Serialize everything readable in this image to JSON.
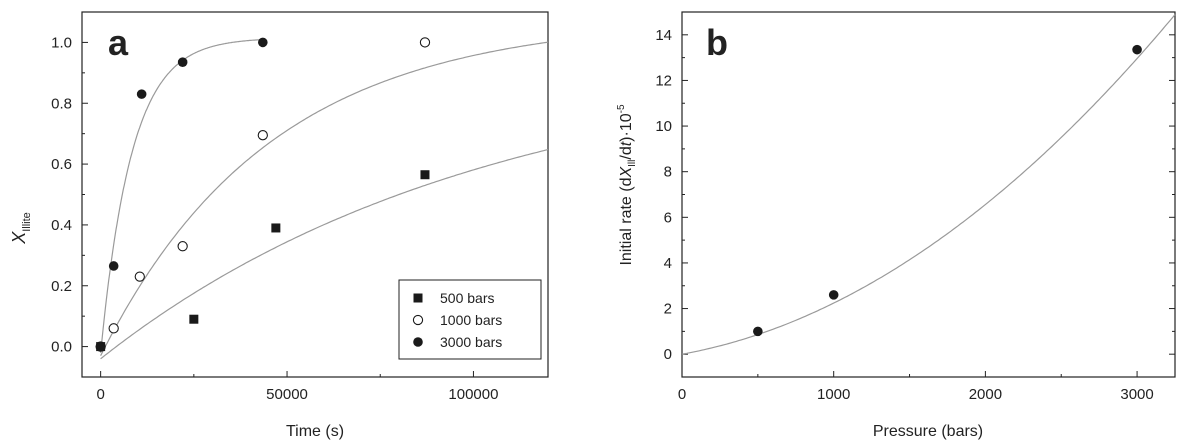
{
  "chart_data": [
    {
      "type": "scatter",
      "panel_label": "a",
      "xlabel": "Time (s)",
      "ylabel_main": "X",
      "ylabel_sub": "Illite",
      "xlim": [
        -5000,
        120000
      ],
      "ylim": [
        -0.1,
        1.1
      ],
      "xticks": [
        0,
        50000,
        100000
      ],
      "yticks": [
        0.0,
        0.2,
        0.4,
        0.6,
        0.8,
        1.0
      ],
      "ytick_labels": [
        "0.0",
        "0.2",
        "0.4",
        "0.6",
        "0.8",
        "1.0"
      ],
      "grid": false,
      "legend_position": "bottom-right",
      "series": [
        {
          "name": "500 bars",
          "marker": "filled-square",
          "x": [
            0,
            25000,
            47000,
            87000
          ],
          "y": [
            0.0,
            0.09,
            0.39,
            0.565
          ],
          "fit": {
            "form": "exponential-saturation",
            "y0": -0.04,
            "ymax": 0.96,
            "k": 9.7e-06,
            "x_end": 120000
          }
        },
        {
          "name": "1000 bars",
          "marker": "open-circle",
          "x": [
            0,
            3500,
            10500,
            22000,
            43500,
            87000
          ],
          "y": [
            0.0,
            0.06,
            0.23,
            0.33,
            0.695,
            1.0
          ],
          "fit": {
            "form": "exponential-saturation",
            "y0": -0.03,
            "ymax": 1.08,
            "k": 2.2e-05,
            "x_end": 120000
          }
        },
        {
          "name": "3000 bars",
          "marker": "filled-circle",
          "x": [
            0,
            3500,
            11000,
            22000,
            43500
          ],
          "y": [
            0.0,
            0.265,
            0.83,
            0.935,
            1.0
          ],
          "fit": {
            "form": "exponential-saturation",
            "y0": -0.02,
            "ymax": 1.015,
            "k": 0.00012,
            "x_end": 43500
          }
        }
      ]
    },
    {
      "type": "scatter",
      "panel_label": "b",
      "xlabel": "Pressure (bars)",
      "ylabel_main": "Initial rate (d",
      "ylabel_var": "X",
      "ylabel_sub": "Ill",
      "ylabel_slash": "/d",
      "ylabel_t": "t",
      "ylabel_tail": ")·10",
      "ylabel_exp": "-5",
      "xlim": [
        0,
        3250
      ],
      "ylim": [
        -1,
        15
      ],
      "xticks": [
        0,
        1000,
        2000,
        3000
      ],
      "yticks": [
        0,
        2,
        4,
        6,
        8,
        10,
        12,
        14
      ],
      "grid": false,
      "series": [
        {
          "marker": "filled-circle",
          "x": [
            500,
            1000,
            3000
          ],
          "y": [
            1.0,
            2.6,
            13.35
          ],
          "fit": {
            "form": "quadratic",
            "a": 1.04e-06,
            "b": 0.0012,
            "c": 0.0
          }
        }
      ]
    }
  ],
  "colors": {
    "marker": "#1a1a1a",
    "fit_line": "#9a9a9a",
    "axis": "#222222",
    "background": "#ffffff"
  }
}
